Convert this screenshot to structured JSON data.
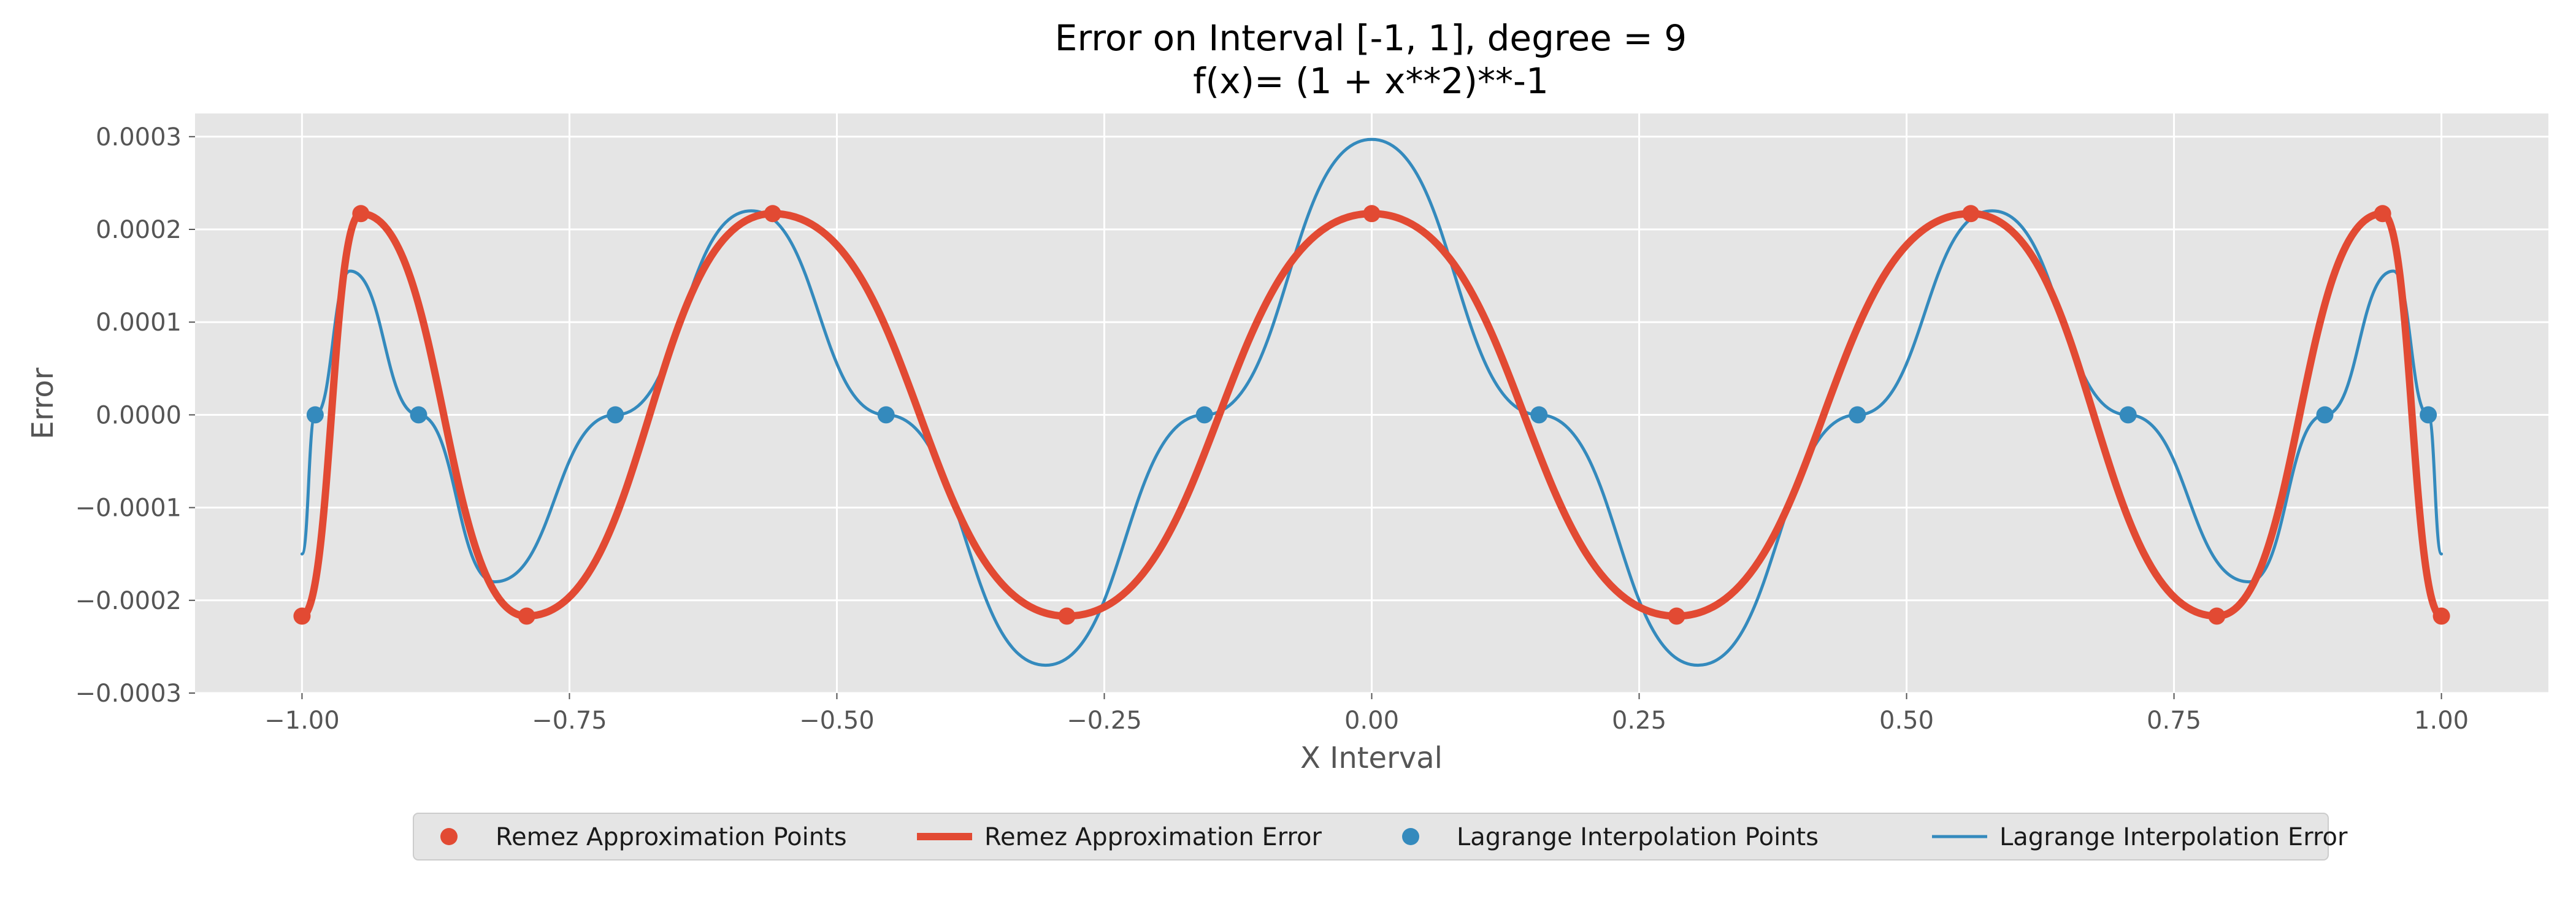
{
  "chart_data": {
    "type": "line",
    "title": "Error on Interval [-1, 1], degree = 9",
    "subtitle": "f(x)= (1 + x**2)**-1",
    "xlabel": "X Interval",
    "ylabel": "Error",
    "xlim": [
      -1.1,
      1.1
    ],
    "ylim": [
      -0.0003,
      0.000325
    ],
    "xticks": [
      -1.0,
      -0.75,
      -0.5,
      -0.25,
      0.0,
      0.25,
      0.5,
      0.75,
      1.0
    ],
    "xtick_labels": [
      "−1.00",
      "−0.75",
      "−0.50",
      "−0.25",
      "0.00",
      "0.25",
      "0.50",
      "0.75",
      "1.00"
    ],
    "yticks": [
      -0.0003,
      -0.0002,
      -0.0001,
      0.0,
      0.0001,
      0.0002,
      0.0003
    ],
    "ytick_labels": [
      "−0.0003",
      "−0.0002",
      "−0.0001",
      "0.0000",
      "0.0001",
      "0.0002",
      "0.0003"
    ],
    "grid": true,
    "legend_position": "bottom-center",
    "degree": 9,
    "series": [
      {
        "name": "Remez Approximation Points",
        "kind": "scatter",
        "color": "#E24A33",
        "x": [
          -1.0,
          -0.945,
          -0.79,
          -0.56,
          -0.285,
          0.0,
          0.285,
          0.56,
          0.79,
          0.945,
          1.0
        ],
        "y": [
          -0.000217,
          0.000217,
          -0.000217,
          0.000217,
          -0.000217,
          0.000217,
          -0.000217,
          0.000217,
          -0.000217,
          0.000217,
          -0.000217
        ]
      },
      {
        "name": "Remez Approximation Error",
        "kind": "line",
        "color": "#E24A33",
        "x": [
          -1.0,
          -0.945,
          -0.79,
          -0.56,
          -0.285,
          0.0,
          0.285,
          0.56,
          0.79,
          0.945,
          1.0
        ],
        "y": [
          -0.000217,
          0.000217,
          -0.000217,
          0.000217,
          -0.000217,
          0.000217,
          -0.000217,
          0.000217,
          -0.000217,
          0.000217,
          -0.000217
        ]
      },
      {
        "name": "Lagrange Interpolation Points",
        "kind": "scatter",
        "color": "#348ABD",
        "x": [
          -0.9877,
          -0.891,
          -0.7071,
          -0.454,
          -0.1564,
          0.1564,
          0.454,
          0.7071,
          0.891,
          0.9877
        ],
        "y": [
          0,
          0,
          0,
          0,
          0,
          0,
          0,
          0,
          0,
          0
        ]
      },
      {
        "name": "Lagrange Interpolation Error",
        "kind": "line",
        "color": "#348ABD",
        "x": [
          -1.0,
          -0.9877,
          -0.955,
          -0.891,
          -0.82,
          -0.7071,
          -0.58,
          -0.454,
          -0.305,
          -0.1564,
          0.0,
          0.1564,
          0.305,
          0.454,
          0.58,
          0.7071,
          0.82,
          0.891,
          0.955,
          0.9877,
          1.0
        ],
        "y": [
          -0.00015,
          0.0,
          0.000155,
          0.0,
          -0.00018,
          0.0,
          0.00022,
          0.0,
          -0.00027,
          0.0,
          0.000297,
          0.0,
          -0.00027,
          0.0,
          0.00022,
          0.0,
          -0.00018,
          0.0,
          0.000155,
          0.0,
          -0.00015
        ]
      }
    ]
  }
}
